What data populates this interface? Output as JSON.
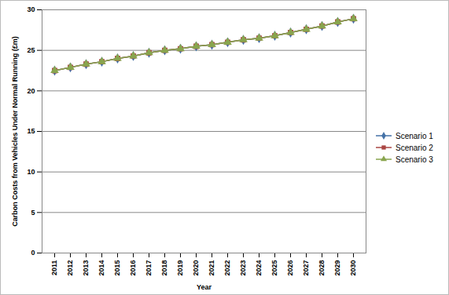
{
  "chart_data": {
    "type": "line",
    "x_label": "Year",
    "y_label": "Carbon Costs from Vehicles Under Normal Running (£m)",
    "categories": [
      "2011",
      "2012",
      "2013",
      "2014",
      "2015",
      "2016",
      "2017",
      "2018",
      "2019",
      "2020",
      "2021",
      "2022",
      "2023",
      "2024",
      "2025",
      "2026",
      "2027",
      "2028",
      "2029",
      "2030"
    ],
    "series": [
      {
        "name": "Scenario 1",
        "color": "#4572a7",
        "marker": "diamond",
        "values": [
          22.5,
          22.9,
          23.3,
          23.6,
          24.0,
          24.3,
          24.7,
          25.0,
          25.2,
          25.5,
          25.7,
          26.0,
          26.3,
          26.5,
          26.8,
          27.2,
          27.6,
          28.0,
          28.5,
          28.9
        ]
      },
      {
        "name": "Scenario 2",
        "color": "#aa4643",
        "marker": "square",
        "values": [
          22.5,
          22.9,
          23.3,
          23.6,
          24.0,
          24.3,
          24.7,
          25.0,
          25.2,
          25.5,
          25.7,
          26.0,
          26.3,
          26.5,
          26.8,
          27.2,
          27.6,
          28.0,
          28.5,
          28.9
        ]
      },
      {
        "name": "Scenario 3",
        "color": "#89a54e",
        "marker": "triangle",
        "values": [
          22.5,
          22.9,
          23.3,
          23.6,
          24.0,
          24.3,
          24.7,
          25.0,
          25.2,
          25.5,
          25.7,
          26.0,
          26.3,
          26.5,
          26.8,
          27.2,
          27.6,
          28.0,
          28.5,
          28.9
        ]
      }
    ],
    "ylim": [
      0,
      30
    ],
    "yticks": [
      0,
      5,
      10,
      15,
      20,
      25,
      30
    ],
    "grid": true,
    "legend": "right"
  }
}
